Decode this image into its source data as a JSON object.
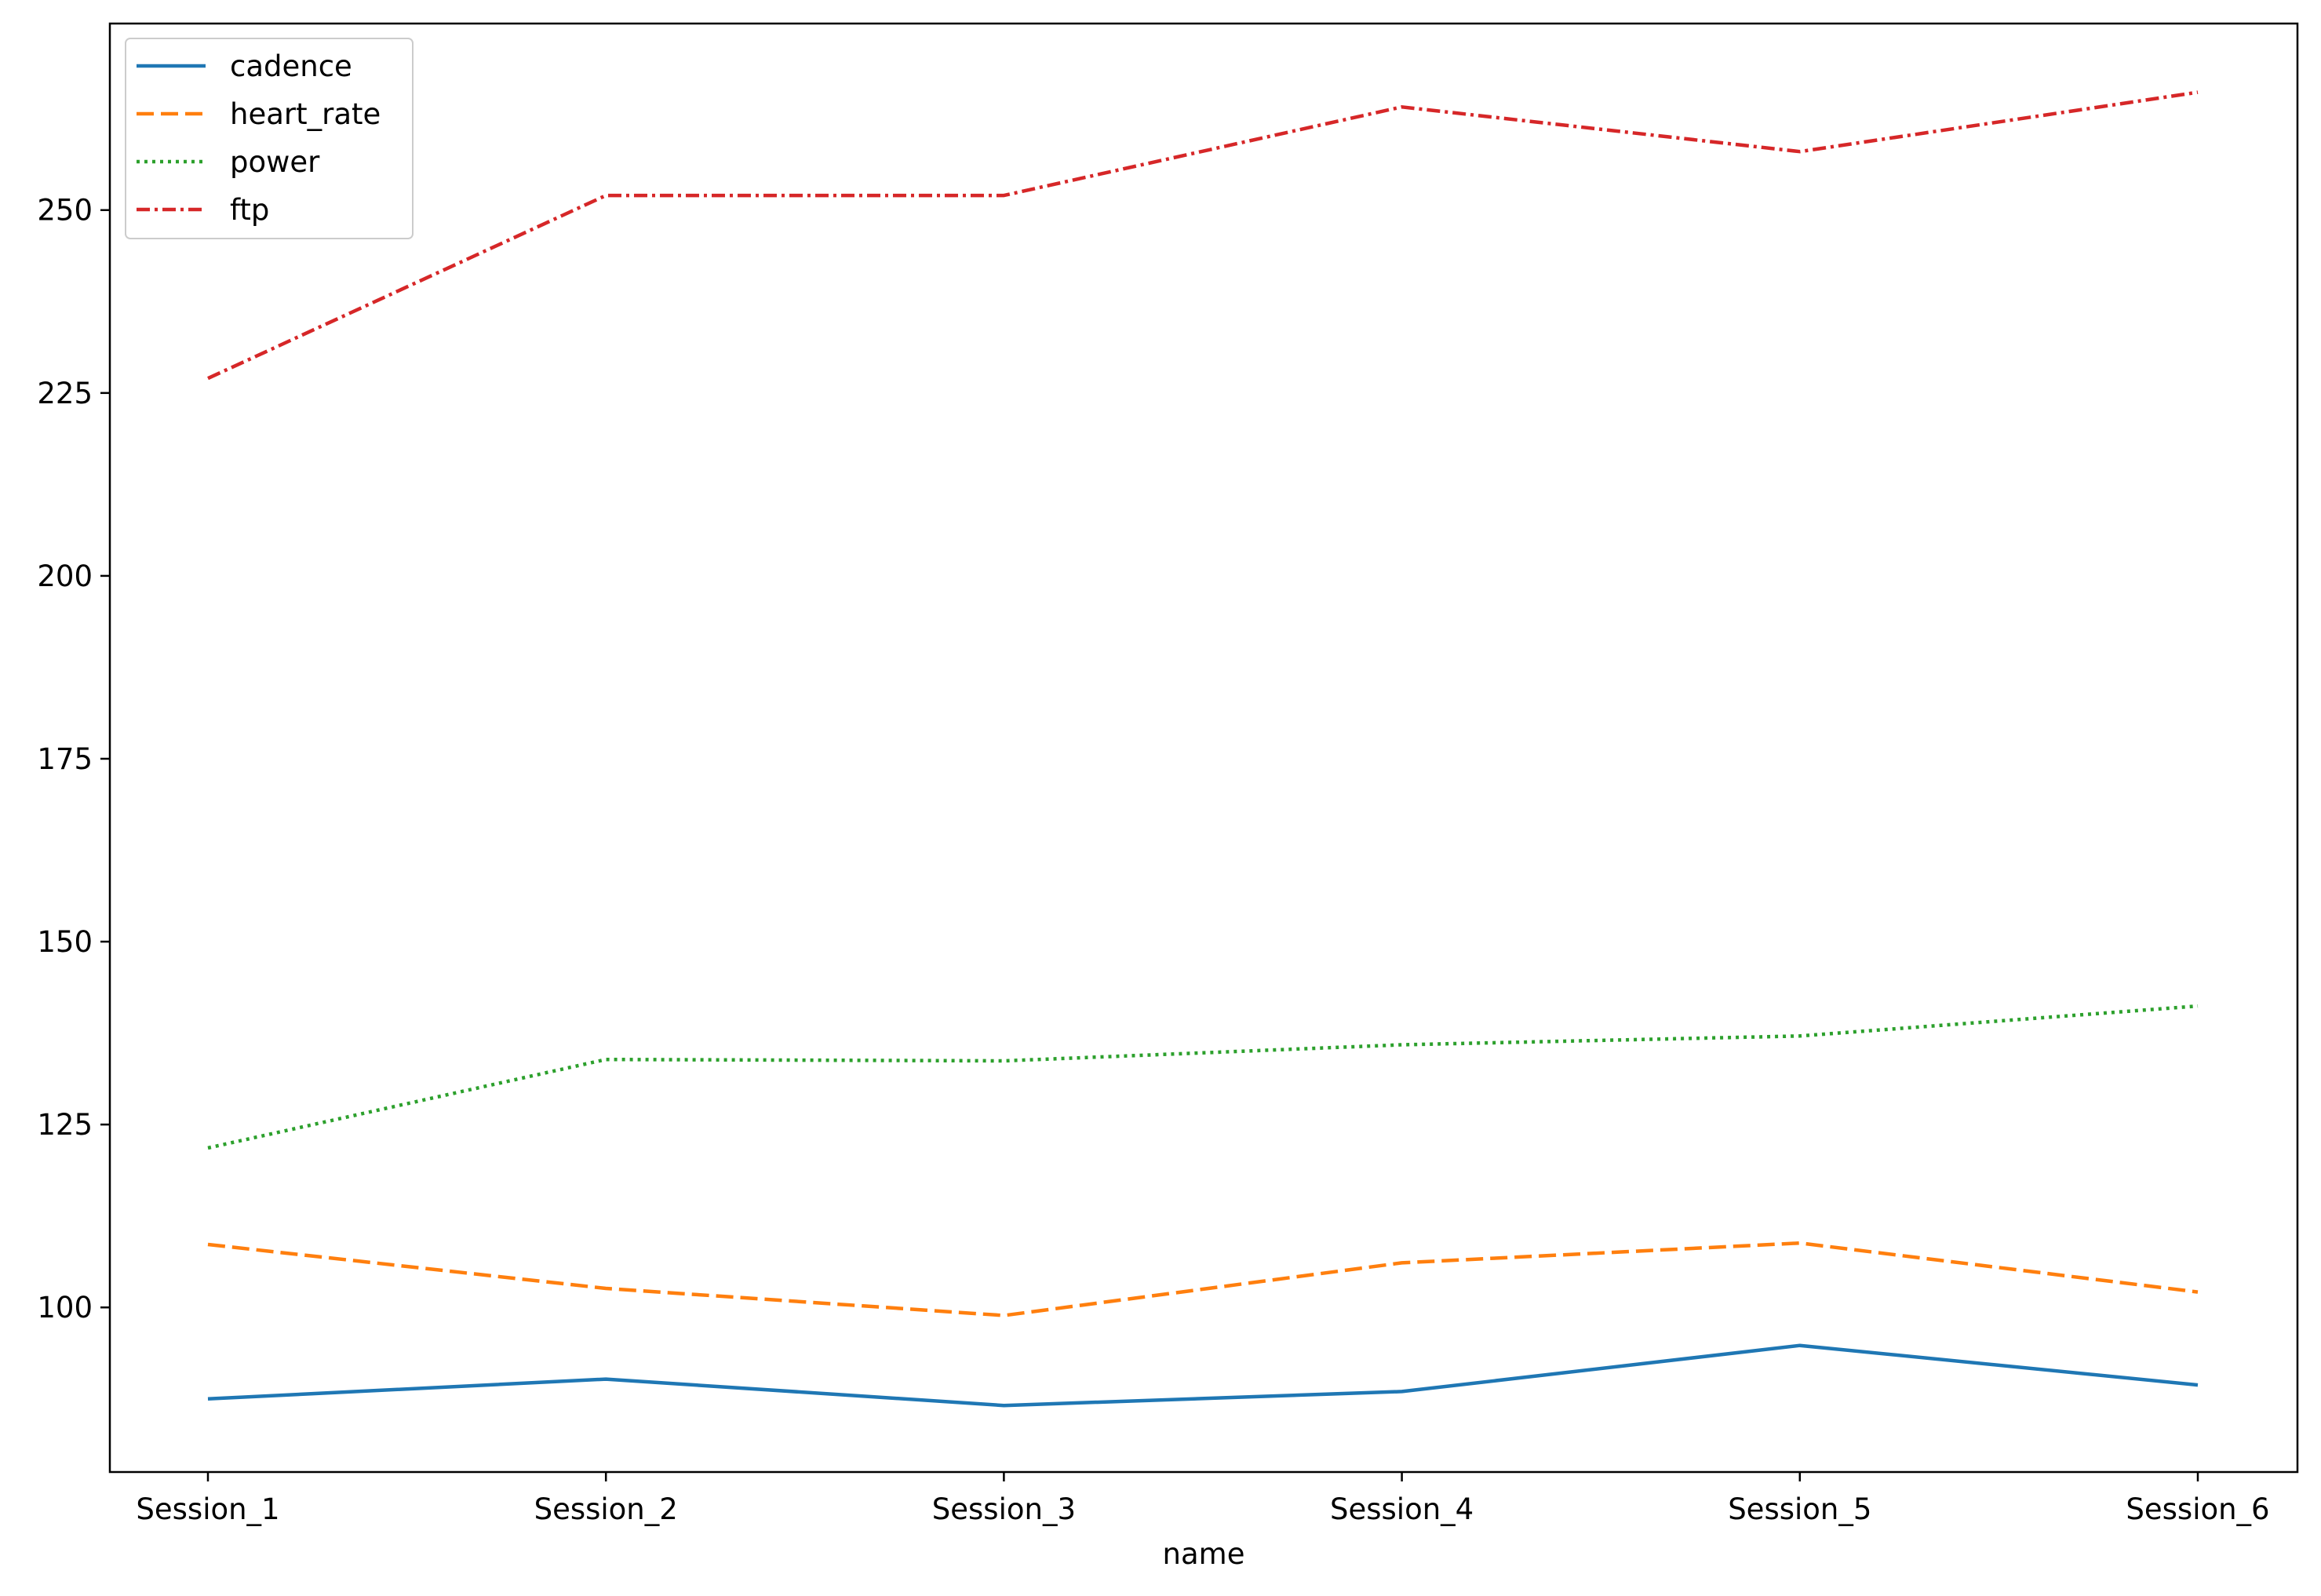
{
  "chart_data": {
    "type": "line",
    "title": "",
    "xlabel": "name",
    "ylabel": "",
    "categories": [
      "Session_1",
      "Session_2",
      "Session_3",
      "Session_4",
      "Session_5",
      "Session_6"
    ],
    "ylim": [
      77.5,
      275.5
    ],
    "yticks": [
      100,
      125,
      150,
      175,
      200,
      225,
      250
    ],
    "grid": false,
    "legend_position": "top-left",
    "series": [
      {
        "name": "cadence",
        "color": "#1f77b4",
        "dash": "solid",
        "values": [
          87.5,
          90.2,
          86.6,
          88.5,
          94.8,
          89.4
        ]
      },
      {
        "name": "heart_rate",
        "color": "#ff7f0e",
        "dash": "dashed",
        "values": [
          108.6,
          102.6,
          98.9,
          106.1,
          108.8,
          102.1
        ]
      },
      {
        "name": "power",
        "color": "#2ca02c",
        "dash": "dotted",
        "values": [
          121.8,
          133.9,
          133.7,
          135.9,
          137.1,
          141.2
        ]
      },
      {
        "name": "ftp",
        "color": "#d62728",
        "dash": "dashdot",
        "values": [
          227.0,
          252.0,
          252.0,
          264.1,
          258.0,
          266.1
        ]
      }
    ]
  }
}
